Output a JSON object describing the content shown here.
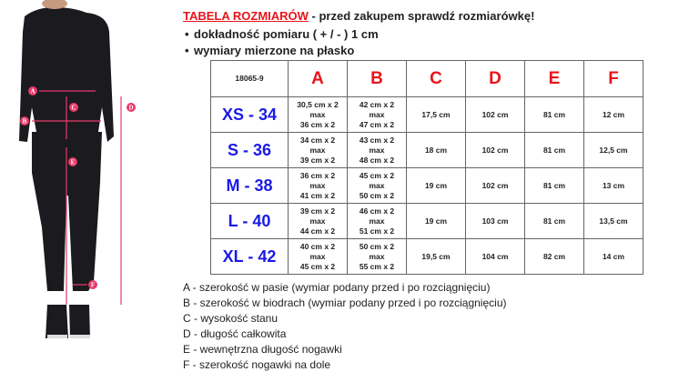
{
  "header": {
    "title_red": "TABELA ROZMIARÓW",
    "title_rest": " - przed zakupem sprawdź rozmiarówkę!",
    "bullets": [
      "dokładność pomiaru ( + / - ) 1 cm",
      "wymiary mierzone na płasko"
    ]
  },
  "table": {
    "code": "18065-9",
    "columns": [
      "A",
      "B",
      "C",
      "D",
      "E",
      "F"
    ],
    "rows": [
      {
        "size": "XS - 34",
        "A": [
          "30,5 cm x 2",
          "max",
          "36 cm x 2"
        ],
        "B": [
          "42 cm x 2",
          "max",
          "47 cm x 2"
        ],
        "C": "17,5 cm",
        "D": "102 cm",
        "E": "81 cm",
        "F": "12 cm"
      },
      {
        "size": "S - 36",
        "A": [
          "34 cm x 2",
          "max",
          "39 cm x 2"
        ],
        "B": [
          "43 cm x 2",
          "max",
          "48 cm x 2"
        ],
        "C": "18 cm",
        "D": "102 cm",
        "E": "81 cm",
        "F": "12,5 cm"
      },
      {
        "size": "M - 38",
        "A": [
          "36 cm x 2",
          "max",
          "41 cm x 2"
        ],
        "B": [
          "45 cm x 2",
          "max",
          "50 cm x 2"
        ],
        "C": "19 cm",
        "D": "102 cm",
        "E": "81 cm",
        "F": "13 cm"
      },
      {
        "size": "L - 40",
        "A": [
          "39 cm x 2",
          "max",
          "44 cm x 2"
        ],
        "B": [
          "46 cm x 2",
          "max",
          "51 cm x 2"
        ],
        "C": "19 cm",
        "D": "103 cm",
        "E": "81 cm",
        "F": "13,5 cm"
      },
      {
        "size": "XL - 42",
        "A": [
          "40 cm x 2",
          "max",
          "45 cm x 2"
        ],
        "B": [
          "50 cm x 2",
          "max",
          "55 cm x 2"
        ],
        "C": "19,5 cm",
        "D": "104 cm",
        "E": "82 cm",
        "F": "14 cm"
      }
    ]
  },
  "legend": [
    "A - szerokość w pasie (wymiar podany przed i po rozciągnięciu)",
    "B - szerokość w biodrach (wymiar podany przed i po rozciągnięciu)",
    "C - wysokość stanu",
    "D - długość całkowita",
    "E - wewnętrzna długość nogawki",
    "F - szerokość nogawki na dole"
  ],
  "figure": {
    "markers": [
      "A",
      "B",
      "C",
      "D",
      "E",
      "F"
    ]
  },
  "colors": {
    "title_red": "#e8141b",
    "size_blue": "#1a1ae6",
    "marker_pink": "#e83a6a"
  }
}
